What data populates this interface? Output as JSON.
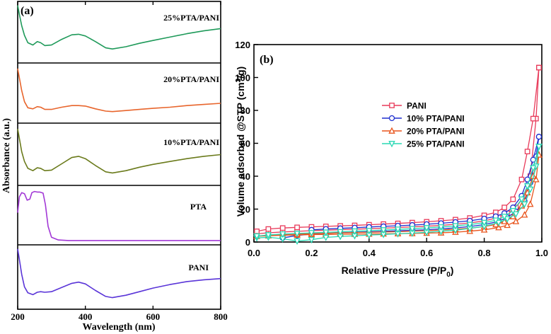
{
  "chart_data": [
    {
      "panel_label": "(a)",
      "type": "line",
      "title": "",
      "xlabel": "Wavelength (nm)",
      "ylabel": "Absorbance (a.u.)",
      "xlim": [
        200,
        800
      ],
      "x_ticks": [
        "200",
        "400",
        "600",
        "800"
      ],
      "stacked_spectra": [
        {
          "name": "25%PTA/PANI",
          "color": "#1f9a5a",
          "x": [
            200,
            205,
            212,
            220,
            230,
            245,
            258,
            268,
            280,
            300,
            330,
            360,
            380,
            400,
            430,
            460,
            480,
            520,
            560,
            600,
            650,
            700,
            750,
            800
          ],
          "y": [
            0.98,
            0.82,
            0.62,
            0.45,
            0.32,
            0.28,
            0.34,
            0.32,
            0.27,
            0.28,
            0.38,
            0.46,
            0.47,
            0.44,
            0.34,
            0.23,
            0.21,
            0.25,
            0.31,
            0.36,
            0.42,
            0.48,
            0.53,
            0.57
          ]
        },
        {
          "name": "20%PTA/PANI",
          "color": "#e8652c",
          "x": [
            200,
            205,
            212,
            220,
            230,
            245,
            258,
            268,
            280,
            300,
            330,
            360,
            380,
            400,
            430,
            460,
            480,
            520,
            560,
            600,
            650,
            700,
            750,
            800
          ],
          "y": [
            0.95,
            0.78,
            0.55,
            0.35,
            0.24,
            0.22,
            0.26,
            0.25,
            0.21,
            0.21,
            0.25,
            0.28,
            0.28,
            0.27,
            0.22,
            0.18,
            0.17,
            0.19,
            0.21,
            0.23,
            0.25,
            0.28,
            0.3,
            0.32
          ]
        },
        {
          "name": "10%PTA/PANI",
          "color": "#6b7b1c",
          "x": [
            200,
            205,
            212,
            220,
            230,
            245,
            258,
            268,
            280,
            300,
            330,
            360,
            380,
            400,
            430,
            460,
            480,
            520,
            560,
            600,
            650,
            700,
            750,
            800
          ],
          "y": [
            0.95,
            0.78,
            0.55,
            0.38,
            0.26,
            0.22,
            0.27,
            0.26,
            0.22,
            0.23,
            0.34,
            0.45,
            0.47,
            0.43,
            0.31,
            0.2,
            0.18,
            0.22,
            0.28,
            0.33,
            0.38,
            0.43,
            0.47,
            0.5
          ]
        },
        {
          "name": "PTA",
          "color": "#a238d6",
          "x": [
            200,
            205,
            212,
            220,
            228,
            236,
            242,
            250,
            258,
            265,
            275,
            282,
            290,
            300,
            320,
            350,
            400,
            500,
            600,
            700,
            800
          ],
          "y": [
            0.55,
            0.84,
            0.92,
            0.9,
            0.78,
            0.8,
            0.92,
            0.94,
            0.93,
            0.93,
            0.91,
            0.7,
            0.3,
            0.1,
            0.05,
            0.04,
            0.04,
            0.04,
            0.04,
            0.04,
            0.04
          ]
        },
        {
          "name": "PANI",
          "color": "#5a35d8",
          "x": [
            200,
            205,
            212,
            220,
            230,
            245,
            258,
            268,
            280,
            300,
            330,
            360,
            380,
            400,
            430,
            460,
            480,
            520,
            560,
            600,
            650,
            700,
            750,
            800
          ],
          "y": [
            0.98,
            0.8,
            0.55,
            0.34,
            0.24,
            0.21,
            0.25,
            0.26,
            0.25,
            0.26,
            0.33,
            0.4,
            0.42,
            0.39,
            0.28,
            0.18,
            0.16,
            0.2,
            0.26,
            0.32,
            0.38,
            0.43,
            0.46,
            0.48
          ]
        }
      ]
    },
    {
      "panel_label": "(b)",
      "type": "line",
      "title": "",
      "xlabel": "Relative Pressure (P/P",
      "xlabel_sub": "0",
      "xlabel_end": ")",
      "ylabel": "Volume adsorbed @STP (cm",
      "ylabel_sup": "3",
      "ylabel_end": "/g)",
      "xlim": [
        0.0,
        1.0
      ],
      "ylim": [
        0,
        120
      ],
      "x_ticks": [
        0.0,
        0.2,
        0.4,
        0.6,
        0.8,
        1.0
      ],
      "x_tick_labels": [
        "0.0",
        "0.2",
        "0.4",
        "0.6",
        "0.8",
        "1.0"
      ],
      "y_ticks": [
        0,
        20,
        40,
        60,
        80,
        100,
        120
      ],
      "y_tick_labels": [
        "0",
        "20",
        "40",
        "60",
        "80",
        "100",
        "120"
      ],
      "legend_position": "center-right",
      "series": [
        {
          "name": "PANI",
          "color": "#e83a5a",
          "marker": "square",
          "adsorption": {
            "x": [
              0.01,
              0.05,
              0.1,
              0.15,
              0.2,
              0.25,
              0.3,
              0.35,
              0.4,
              0.45,
              0.5,
              0.55,
              0.6,
              0.65,
              0.7,
              0.75,
              0.8,
              0.85,
              0.88,
              0.91,
              0.94,
              0.96,
              0.98,
              0.99
            ],
            "y": [
              5.0,
              5.6,
              6.1,
              6.5,
              6.9,
              7.2,
              7.5,
              7.8,
              8.1,
              8.4,
              8.8,
              9.2,
              9.6,
              10.1,
              10.8,
              11.6,
              12.8,
              15,
              17.5,
              21,
              28,
              40,
              75,
              106
            ]
          },
          "desorption": {
            "x": [
              0.99,
              0.97,
              0.95,
              0.93,
              0.9,
              0.87,
              0.84,
              0.8,
              0.75,
              0.7,
              0.65,
              0.6,
              0.55,
              0.5,
              0.45,
              0.4,
              0.35,
              0.3,
              0.25,
              0.2,
              0.15,
              0.1,
              0.05,
              0.01
            ],
            "y": [
              106,
              75,
              55,
              38,
              26,
              21,
              18,
              16.2,
              14.6,
              13.6,
              12.9,
              12.3,
              11.8,
              11.3,
              10.9,
              10.5,
              10.1,
              9.8,
              9.5,
              9.2,
              8.9,
              8.5,
              7.9,
              6.5
            ]
          }
        },
        {
          "name": "10% PTA/PANI",
          "color": "#1e2fcf",
          "marker": "circle",
          "adsorption": {
            "x": [
              0.1,
              0.15,
              0.2,
              0.25,
              0.3,
              0.35,
              0.4,
              0.45,
              0.5,
              0.55,
              0.6,
              0.65,
              0.7,
              0.75,
              0.8,
              0.85,
              0.88,
              0.91,
              0.94,
              0.96,
              0.98,
              0.99
            ],
            "y": [
              2.5,
              4.0,
              4.8,
              5.2,
              5.6,
              5.9,
              6.2,
              6.5,
              6.8,
              7.1,
              7.5,
              8.0,
              8.6,
              9.4,
              10.6,
              12.6,
              15,
              18.5,
              25,
              36,
              52,
              64
            ]
          },
          "desorption": {
            "x": [
              0.99,
              0.97,
              0.95,
              0.93,
              0.9,
              0.87,
              0.84,
              0.8,
              0.75,
              0.7,
              0.65,
              0.6,
              0.55,
              0.5,
              0.45,
              0.4,
              0.35,
              0.3,
              0.25,
              0.2
            ],
            "y": [
              64,
              50,
              38,
              28,
              21,
              17.5,
              15.6,
              14.2,
              12.9,
              12.1,
              11.4,
              10.8,
              10.3,
              9.9,
              9.5,
              9.1,
              8.7,
              8.3,
              7.9,
              7.4
            ]
          }
        },
        {
          "name": "20% PTA/PANI",
          "color": "#e8541c",
          "marker": "triangle-up",
          "adsorption": {
            "x": [
              0.01,
              0.05,
              0.1,
              0.15,
              0.2,
              0.25,
              0.3,
              0.35,
              0.4,
              0.45,
              0.5,
              0.55,
              0.6,
              0.65,
              0.7,
              0.75,
              0.8,
              0.85,
              0.88,
              0.91,
              0.94,
              0.96,
              0.98,
              0.99
            ],
            "y": [
              3.5,
              3.8,
              4.1,
              4.3,
              4.5,
              4.6,
              4.7,
              4.8,
              4.9,
              5.0,
              5.1,
              5.2,
              5.4,
              5.6,
              6.0,
              6.6,
              7.4,
              8.8,
              10.2,
              12.5,
              16.5,
              23,
              38,
              53
            ]
          },
          "desorption": {
            "x": [
              0.99,
              0.97,
              0.95,
              0.93,
              0.9,
              0.87,
              0.84,
              0.8,
              0.75,
              0.7,
              0.65,
              0.6,
              0.55,
              0.5,
              0.45,
              0.4,
              0.35,
              0.3,
              0.25,
              0.2,
              0.15,
              0.1,
              0.05
            ],
            "y": [
              53,
              40,
              30,
              22,
              15.5,
              12.5,
              10.6,
              9.4,
              8.4,
              7.8,
              7.3,
              6.9,
              6.6,
              6.3,
              6.1,
              5.9,
              5.7,
              5.5,
              5.3,
              5.1,
              4.8,
              4.5,
              4.1
            ]
          }
        },
        {
          "name": "25% PTA/PANI",
          "color": "#28d8b4",
          "marker": "triangle-down",
          "adsorption": {
            "x": [
              0.01,
              0.05,
              0.1,
              0.15,
              0.2,
              0.25,
              0.3,
              0.35,
              0.4,
              0.45,
              0.5,
              0.55,
              0.6,
              0.65,
              0.7,
              0.75,
              0.8,
              0.85,
              0.88,
              0.91,
              0.94,
              0.96,
              0.98,
              0.99
            ],
            "y": [
              2.5,
              2.9,
              2.0,
              0.6,
              1.4,
              2.8,
              3.4,
              3.8,
              4.2,
              4.6,
              5.0,
              5.4,
              5.9,
              6.5,
              7.2,
              8.2,
              9.6,
              11.8,
              14,
              17,
              23,
              32,
              46,
              58
            ]
          },
          "desorption": {
            "x": [
              0.99,
              0.97,
              0.95,
              0.93,
              0.9,
              0.87,
              0.84,
              0.8,
              0.75,
              0.7,
              0.65,
              0.6,
              0.55,
              0.5,
              0.45,
              0.4,
              0.35,
              0.3,
              0.25,
              0.2,
              0.15,
              0.1,
              0.05,
              0.01
            ],
            "y": [
              58,
              45,
              34,
              26,
              19,
              15.5,
              13.2,
              11.8,
              10.6,
              9.8,
              9.1,
              8.6,
              8.1,
              7.7,
              7.3,
              6.9,
              6.6,
              6.2,
              5.9,
              5.6,
              5.2,
              4.8,
              4.3,
              3.6
            ]
          }
        }
      ]
    }
  ]
}
